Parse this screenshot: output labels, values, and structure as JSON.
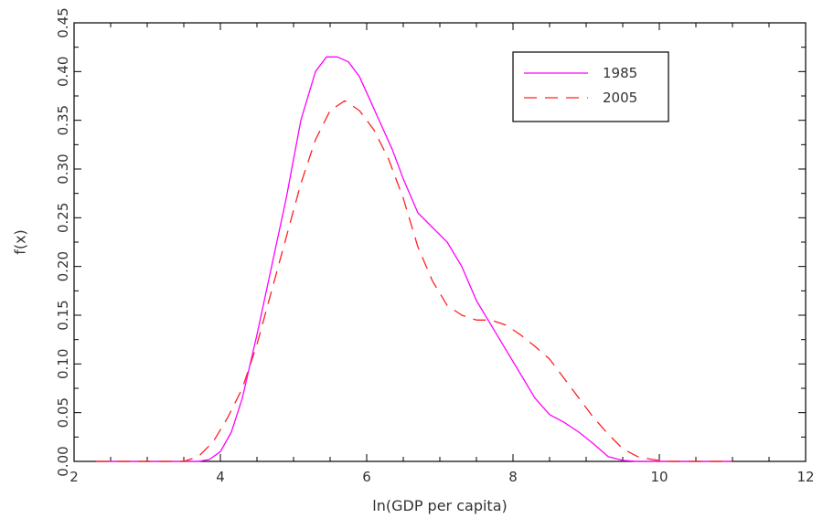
{
  "chart_data": {
    "type": "line",
    "xlabel": "ln(GDP per capita)",
    "ylabel": "f(x)",
    "xlim": [
      2,
      12
    ],
    "ylim": [
      0,
      0.45
    ],
    "x_ticks": [
      2,
      4,
      6,
      8,
      10,
      12
    ],
    "x_tick_labels": [
      "2",
      "4",
      "6",
      "8",
      "10",
      "12"
    ],
    "y_ticks": [
      0,
      0.05,
      0.1,
      0.15,
      0.2,
      0.25,
      0.3,
      0.35,
      0.4,
      0.45
    ],
    "y_tick_labels": [
      "0.00",
      "0.05",
      "0.10",
      "0.15",
      "0.20",
      "0.25",
      "0.30",
      "0.35",
      "0.40",
      "0.45"
    ],
    "grid": false,
    "legend_position": "top-right",
    "series": [
      {
        "name": "1985",
        "color": "#ff00ff",
        "style": "solid",
        "x": [
          2.3,
          3.0,
          3.5,
          3.7,
          3.85,
          4.0,
          4.15,
          4.3,
          4.5,
          4.7,
          4.9,
          5.1,
          5.3,
          5.45,
          5.6,
          5.75,
          5.9,
          6.05,
          6.2,
          6.35,
          6.5,
          6.7,
          6.9,
          7.1,
          7.3,
          7.5,
          7.7,
          7.9,
          8.1,
          8.3,
          8.5,
          8.7,
          8.9,
          9.1,
          9.3,
          9.5,
          9.7,
          10.0,
          10.5,
          11.0
        ],
        "y": [
          0.0,
          0.0,
          0.0,
          0.0,
          0.002,
          0.01,
          0.03,
          0.065,
          0.13,
          0.2,
          0.27,
          0.35,
          0.4,
          0.415,
          0.415,
          0.41,
          0.395,
          0.37,
          0.345,
          0.32,
          0.29,
          0.255,
          0.24,
          0.225,
          0.2,
          0.165,
          0.14,
          0.115,
          0.09,
          0.065,
          0.048,
          0.04,
          0.03,
          0.018,
          0.005,
          0.001,
          0.0,
          0.0,
          0.0,
          0.0
        ]
      },
      {
        "name": "2005",
        "color": "#ff2020",
        "style": "dashed",
        "x": [
          2.3,
          3.0,
          3.5,
          3.7,
          3.9,
          4.1,
          4.3,
          4.5,
          4.7,
          4.9,
          5.1,
          5.3,
          5.5,
          5.7,
          5.9,
          6.1,
          6.3,
          6.5,
          6.7,
          6.9,
          7.1,
          7.3,
          7.5,
          7.7,
          7.9,
          8.1,
          8.3,
          8.5,
          8.7,
          8.9,
          9.1,
          9.3,
          9.5,
          9.7,
          9.9,
          10.1,
          10.5,
          11.0
        ],
        "y": [
          0.0,
          0.0,
          0.0,
          0.005,
          0.02,
          0.045,
          0.075,
          0.12,
          0.175,
          0.23,
          0.285,
          0.33,
          0.36,
          0.37,
          0.36,
          0.34,
          0.31,
          0.27,
          0.22,
          0.185,
          0.16,
          0.15,
          0.145,
          0.145,
          0.14,
          0.13,
          0.118,
          0.105,
          0.085,
          0.065,
          0.045,
          0.028,
          0.013,
          0.005,
          0.002,
          0.0,
          0.0,
          0.0
        ]
      }
    ]
  }
}
